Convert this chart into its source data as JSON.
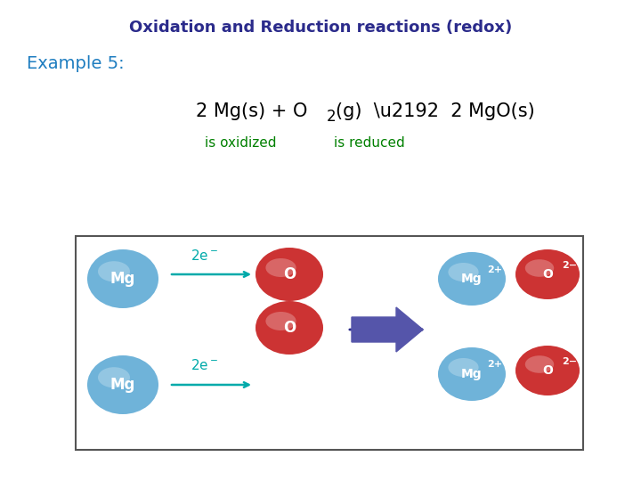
{
  "title": "Oxidation and Reduction reactions (redox)",
  "title_color": "#2B2B8B",
  "title_fontsize": 13,
  "title_bold": true,
  "example_text": "Example 5:",
  "example_color": "#1E7DC0",
  "example_fontsize": 14,
  "equation_color": "#000000",
  "equation_fontsize": 13,
  "label_oxidized": "is oxidized",
  "label_reduced": "is reduced",
  "label_color": "#008000",
  "label_fontsize": 10,
  "bg_color": "#FFFFFF",
  "box_bg": "#FFFFFF",
  "mg_color": "#6FB3D9",
  "o_color": "#CC3333",
  "arrow_color": "#2B2B8B",
  "electron_arrow_color": "#00AAAA",
  "electron_text_color": "#00AAAA"
}
